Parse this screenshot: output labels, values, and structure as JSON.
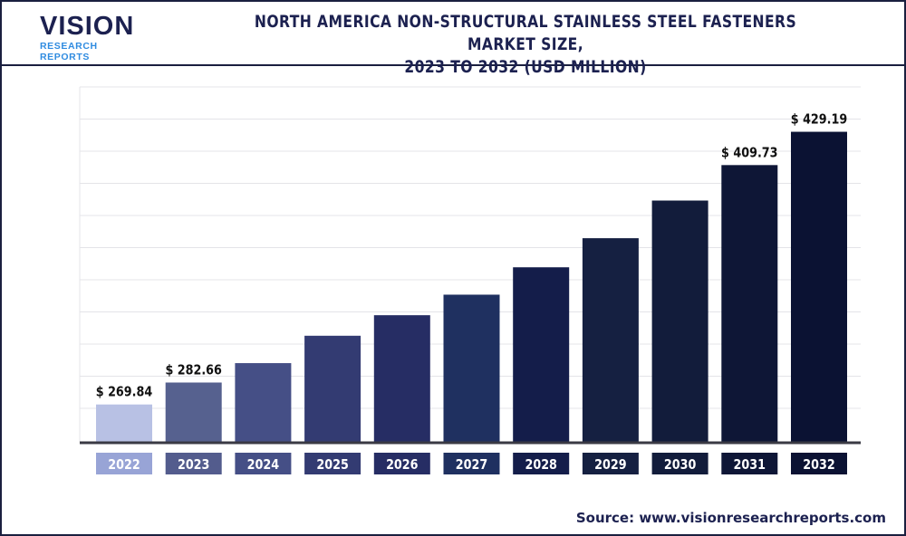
{
  "header": {
    "logo_text": "VISION",
    "logo_subtext": "RESEARCH REPORTS",
    "title_line1": "NORTH AMERICA NON-STRUCTURAL STAINLESS STEEL FASTENERS MARKET SIZE,",
    "title_line2": "2023 TO 2032 (USD MILLION)"
  },
  "footer": {
    "source": "Source: www.visionresearchreports.com"
  },
  "chart_data": {
    "type": "bar",
    "title": "NORTH AMERICA NON-STRUCTURAL STAINLESS STEEL FASTENERS MARKET SIZE, 2023 TO 2032 (USD MILLION)",
    "xlabel": "",
    "ylabel": "",
    "categories": [
      "2022",
      "2023",
      "2024",
      "2025",
      "2026",
      "2027",
      "2028",
      "2029",
      "2030",
      "2031",
      "2032"
    ],
    "values": [
      269.84,
      282.66,
      294,
      310,
      322,
      334,
      350,
      367,
      389,
      409.73,
      429.19
    ],
    "data_labels": [
      "$ 269.84",
      "$ 282.66",
      "",
      "",
      "",
      "",
      "",
      "",
      "",
      "$ 409.73",
      "$ 429.19"
    ],
    "ylim": [
      248,
      440
    ],
    "grid": true,
    "bar_colors": [
      "#b8c1e4",
      "#56618f",
      "#454f86",
      "#333b72",
      "#262d64",
      "#1f3060",
      "#141d4a",
      "#152041",
      "#121c3b",
      "#0e1636",
      "#0b1233"
    ],
    "label_box_colors": [
      "#98a4d6",
      "#535c8d",
      "#454f86",
      "#333b72",
      "#262d64",
      "#1f3060",
      "#141d4a",
      "#152041",
      "#121c3b",
      "#0e1636",
      "#0b1233"
    ]
  }
}
